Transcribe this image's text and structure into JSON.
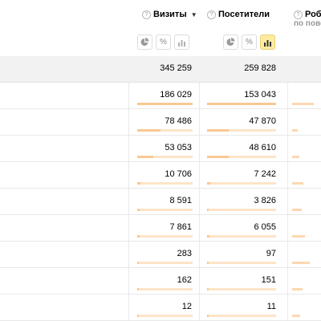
{
  "columns": {
    "visits": {
      "label": "Визиты",
      "sort": "▼"
    },
    "visitors": {
      "label": "Посетители"
    },
    "robots": {
      "label": "Робо",
      "sub_label": "по пове"
    }
  },
  "view_buttons": [
    {
      "icon": "pie-chart-icon",
      "active": false
    },
    {
      "icon": "percent-icon",
      "label": "%",
      "active": false
    },
    {
      "icon": "bar-chart-icon",
      "active": false
    }
  ],
  "view_buttons_visitors": [
    {
      "icon": "pie-chart-icon",
      "active": false
    },
    {
      "icon": "percent-icon",
      "label": "%",
      "active": false
    },
    {
      "icon": "bar-chart-icon",
      "active": true
    }
  ],
  "totals": {
    "visits": "345 259",
    "visitors": "259 828"
  },
  "rows": [
    {
      "visits": "186 029",
      "visitors": "153 043",
      "visits_share": 0.539,
      "visitors_share": 0.589,
      "robots_share": 0.38
    },
    {
      "visits": "78 486",
      "visitors": "47 870",
      "visits_share": 0.227,
      "visitors_share": 0.184,
      "robots_share": 0.1
    },
    {
      "visits": "53 053",
      "visitors": "48 610",
      "visits_share": 0.154,
      "visitors_share": 0.187,
      "robots_share": 0.12
    },
    {
      "visits": "10 706",
      "visitors": "7 242",
      "visits_share": 0.031,
      "visitors_share": 0.028,
      "robots_share": 0.2
    },
    {
      "visits": "8 591",
      "visitors": "3 826",
      "visits_share": 0.025,
      "visitors_share": 0.015,
      "robots_share": 0.16
    },
    {
      "visits": "7 861",
      "visitors": "6 055",
      "visits_share": 0.023,
      "visitors_share": 0.023,
      "robots_share": 0.22
    },
    {
      "visits": "283",
      "visitors": "97",
      "visits_share": 0.001,
      "visitors_share": 0.0004,
      "robots_share": 0.3
    },
    {
      "visits": "162",
      "visitors": "151",
      "visits_share": 0.0005,
      "visitors_share": 0.0006,
      "robots_share": 0.18
    },
    {
      "visits": "12",
      "visitors": "11",
      "visits_share": 3e-05,
      "visitors_share": 4e-05,
      "robots_share": 0.14
    }
  ],
  "colors": {
    "bar_fill": "#f9c892",
    "bar_track": "#fde4c8",
    "active_button": "#ffeba0"
  }
}
